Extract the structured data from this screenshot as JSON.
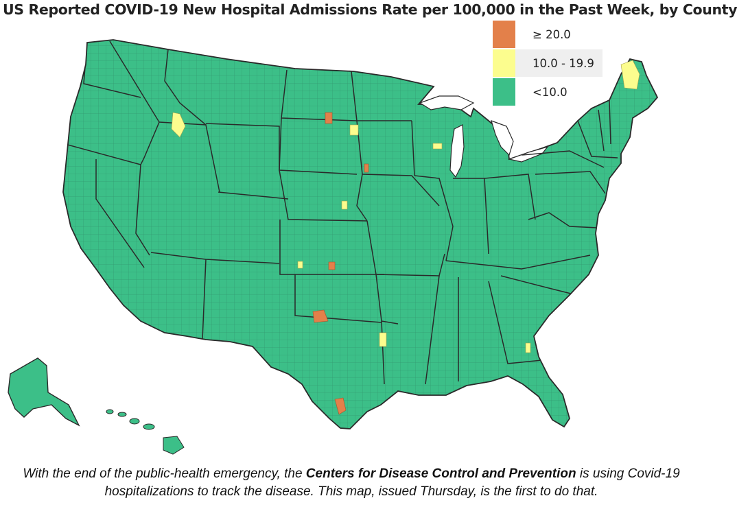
{
  "title": "US Reported COVID-19 New Hospital Admissions Rate per 100,000 in the Past Week, by County",
  "legend": [
    {
      "label": "≥ 20.0",
      "color": "#e3804a"
    },
    {
      "label": "10.0 - 19.9",
      "color": "#fcfd8e"
    },
    {
      "label": "<10.0",
      "color": "#3cbf88"
    }
  ],
  "map": {
    "fill_color": "#3cbf88",
    "county_line_color": "#2f8d6a",
    "state_line_color": "#2a2a2a"
  },
  "caption": {
    "part1": "With the end of the public-health emergency, the ",
    "bold": "Centers for Disease Control and Prevention",
    "part2": " is using Covid-19 hospitalizations to track the disease. This map, issued Thursday, is the first to do that."
  }
}
